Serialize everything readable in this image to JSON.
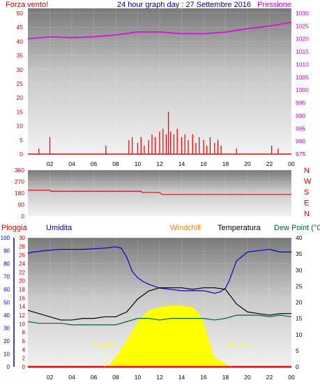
{
  "header": {
    "left_label": "Forza vento!",
    "title": "24 hour graph day : 27 Settembre 2016",
    "right_label": "Pressione"
  },
  "legend2": {
    "pioggia": "Pioggia",
    "umidita": "Umidita",
    "windchill": "Windchill",
    "temperatura": "Temperatura",
    "dewpoint": "Dew Point (°C"
  },
  "annotations": {
    "sunrise": "Sun Rise",
    "sunset": "Sun Set"
  },
  "colors": {
    "wind": "#ff0000",
    "pressure": "#e000e0",
    "direction": "#d01010",
    "humidity": "#0000cc",
    "temperature": "#000000",
    "dewpoint": "#006633",
    "solar": "#ffff00",
    "rain": "#ff0000",
    "windchill": "#ff8000"
  },
  "chart_data": [
    {
      "type": "bar",
      "title": "Forza vento! / Pressione",
      "x_ticks": [
        "02",
        "04",
        "06",
        "08",
        "10",
        "12",
        "14",
        "16",
        "18",
        "20",
        "22",
        "00"
      ],
      "y_left_ticks": [
        "0",
        "5",
        "10",
        "15",
        "20",
        "25",
        "30",
        "35",
        "40",
        "45",
        "50"
      ],
      "y_left_range": [
        0,
        50
      ],
      "y_right_ticks": [
        "975",
        "980",
        "985",
        "990",
        "995",
        "1000",
        "1005",
        "1010",
        "1015",
        "1020",
        "1025",
        "1030"
      ],
      "y_right_range": [
        975,
        1030
      ],
      "series": [
        {
          "name": "Forza vento!",
          "type": "bar",
          "x": [
            1.0,
            2.0,
            7.1,
            9.2,
            9.5,
            10.0,
            10.3,
            10.6,
            11.0,
            11.3,
            11.6,
            12.0,
            12.3,
            12.6,
            12.8,
            13.0,
            13.3,
            13.6,
            14.0,
            14.3,
            14.6,
            15.0,
            15.3,
            15.6,
            16.0,
            16.3,
            16.6,
            17.0,
            17.3,
            17.6,
            19.0,
            22.2,
            22.8
          ],
          "values": [
            2,
            6,
            3,
            5,
            6,
            4,
            6,
            3,
            5,
            7,
            6,
            8,
            9,
            7,
            15,
            8,
            7,
            9,
            6,
            7,
            5,
            7,
            4,
            6,
            5,
            3,
            6,
            4,
            5,
            3,
            2,
            3,
            2
          ]
        },
        {
          "name": "Pressione",
          "type": "line",
          "x": [
            0,
            2,
            4,
            6,
            8,
            10,
            12,
            14,
            16,
            18,
            20,
            22,
            24
          ],
          "values": [
            1020.0,
            1020.8,
            1020.5,
            1020.8,
            1021.5,
            1022.7,
            1022.7,
            1022.0,
            1022.0,
            1022.6,
            1024.0,
            1025.0,
            1026.5
          ]
        }
      ]
    },
    {
      "type": "line",
      "title": "",
      "x_ticks": [
        "02",
        "04",
        "06",
        "08",
        "10",
        "12",
        "14",
        "16",
        "18",
        "20",
        "22",
        "00"
      ],
      "y_left_ticks": [
        "0",
        "90",
        "180",
        "270",
        "360"
      ],
      "y_left_range": [
        0,
        360
      ],
      "y_right_ticks": [
        "N",
        "E",
        "S",
        "W",
        "N"
      ],
      "series": [
        {
          "name": "",
          "x": [
            0,
            2,
            2.1,
            10.3,
            10.4,
            12.0,
            12.2,
            24
          ],
          "values": [
            203,
            203,
            195,
            195,
            185,
            185,
            170,
            170
          ]
        }
      ]
    },
    {
      "type": "line",
      "title": "",
      "x_ticks": [
        "02",
        "04",
        "06",
        "08",
        "10",
        "12",
        "14",
        "16",
        "18",
        "20",
        "22",
        "00"
      ],
      "y_axis1_ticks": [
        "0",
        "10",
        "20",
        "30",
        "40",
        "50",
        "60",
        "70",
        "80",
        "90",
        "100"
      ],
      "y_axis1_range": [
        0,
        100
      ],
      "y_axis2_ticks": [
        "0",
        "2",
        "4",
        "6",
        "8",
        "10",
        "12",
        "14",
        "16",
        "18",
        "20",
        "22",
        "24",
        "26",
        "28",
        "30"
      ],
      "y_axis2_range": [
        0,
        30
      ],
      "y_axis3_ticks": [
        "0",
        "5",
        "10",
        "15",
        "20",
        "25",
        "30",
        "35",
        "40"
      ],
      "y_axis3_range": [
        0,
        40
      ],
      "series": [
        {
          "name": "Umidita",
          "axis": "humidity",
          "x": [
            0,
            0.5,
            1.5,
            3,
            5,
            7,
            8,
            8.5,
            9,
            9.5,
            10,
            10.5,
            11,
            12,
            14,
            16,
            16.5,
            17,
            17.5,
            18,
            18.3,
            19,
            20,
            22,
            23,
            24
          ],
          "values": [
            88,
            89,
            90,
            91,
            91,
            92,
            93,
            92,
            85,
            74,
            69,
            66,
            64,
            61,
            59,
            59,
            58,
            57,
            58,
            61,
            66,
            82,
            89,
            91,
            89,
            89
          ]
        },
        {
          "name": "Temperatura",
          "axis": "temperature",
          "x": [
            0,
            1,
            2,
            3,
            4,
            5,
            6,
            7,
            8,
            9,
            10,
            11,
            12,
            13,
            14,
            15,
            16,
            17,
            18,
            19,
            20,
            21,
            22,
            23,
            24
          ],
          "values": [
            17.5,
            16.5,
            15.5,
            14.5,
            14.5,
            15,
            15,
            15.5,
            15.5,
            17,
            21,
            23.5,
            24.5,
            24.5,
            24.5,
            24,
            24.5,
            24.5,
            24,
            19.5,
            17,
            16.5,
            16,
            16.5,
            16.5
          ]
        },
        {
          "name": "Dew Point (°C",
          "axis": "temperature",
          "x": [
            0,
            1,
            2,
            3,
            4,
            5,
            6,
            7,
            8,
            9,
            10,
            11,
            12,
            13,
            14,
            15,
            16,
            17,
            18,
            19,
            20,
            21,
            22,
            23,
            24
          ],
          "values": [
            14,
            13.5,
            13.5,
            13.5,
            13,
            13,
            13,
            13,
            13,
            14,
            15,
            15,
            14.5,
            15,
            15,
            15,
            15,
            14.5,
            15,
            16,
            16,
            16,
            15.5,
            16,
            15.5
          ]
        },
        {
          "name": "",
          "axis": "solar",
          "type": "area",
          "x": [
            7.0,
            7.5,
            8,
            9,
            10,
            11,
            12,
            13,
            14,
            15,
            15.5,
            16,
            16.5,
            17,
            18,
            18.5
          ],
          "values": [
            0,
            1,
            3,
            8,
            14,
            17.5,
            18.5,
            19,
            19,
            18.5,
            17,
            14,
            8,
            3,
            1,
            0
          ]
        },
        {
          "name": "Pioggia",
          "axis": "rain",
          "x": [
            0,
            24
          ],
          "values": [
            0,
            0
          ]
        }
      ]
    }
  ]
}
